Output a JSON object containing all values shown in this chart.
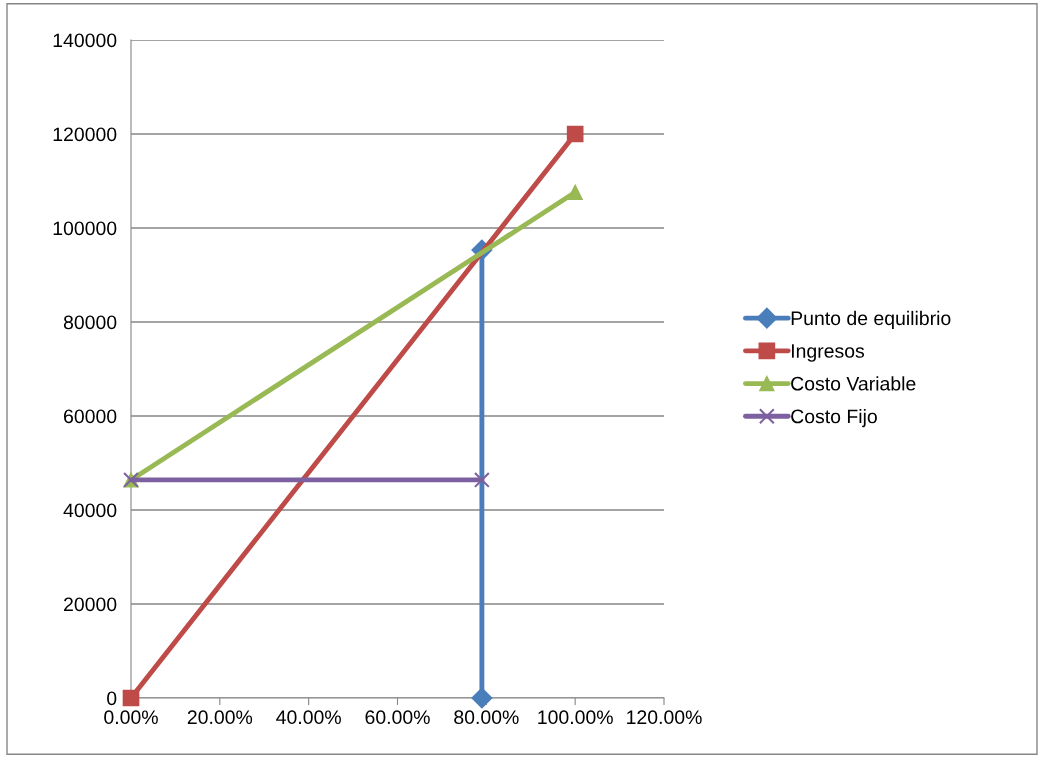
{
  "chart_data": {
    "type": "line",
    "series": [
      {
        "name": "Punto de equilibrio",
        "color": "#4a7ebb",
        "marker": "diamond",
        "x": [
          0.79,
          0.79
        ],
        "values": [
          0,
          95300
        ]
      },
      {
        "name": "Ingresos",
        "color": "#be4b48",
        "marker": "square",
        "x": [
          0,
          1
        ],
        "values": [
          0,
          120000
        ]
      },
      {
        "name": "Costo Variable",
        "color": "#98b954",
        "marker": "triangle",
        "x": [
          0,
          1
        ],
        "values": [
          46400,
          107600
        ]
      },
      {
        "name": "Costo Fijo",
        "color": "#7d60a0",
        "marker": "cross",
        "x": [
          0,
          0.79
        ],
        "values": [
          46400,
          46400
        ]
      }
    ],
    "xlim": [
      0,
      1.2
    ],
    "xticks": [
      {
        "value": 0,
        "label": "0.00%"
      },
      {
        "value": 0.2,
        "label": "20.00%"
      },
      {
        "value": 0.4,
        "label": "40.00%"
      },
      {
        "value": 0.6,
        "label": "60.00%"
      },
      {
        "value": 0.8,
        "label": "80.00%"
      },
      {
        "value": 1.0,
        "label": "100.00%"
      },
      {
        "value": 1.2,
        "label": "120.00%"
      }
    ],
    "ylim": [
      0,
      140000
    ],
    "yticks": [
      0,
      20000,
      40000,
      60000,
      80000,
      100000,
      120000,
      140000
    ],
    "grid": "y",
    "legend": "right"
  }
}
